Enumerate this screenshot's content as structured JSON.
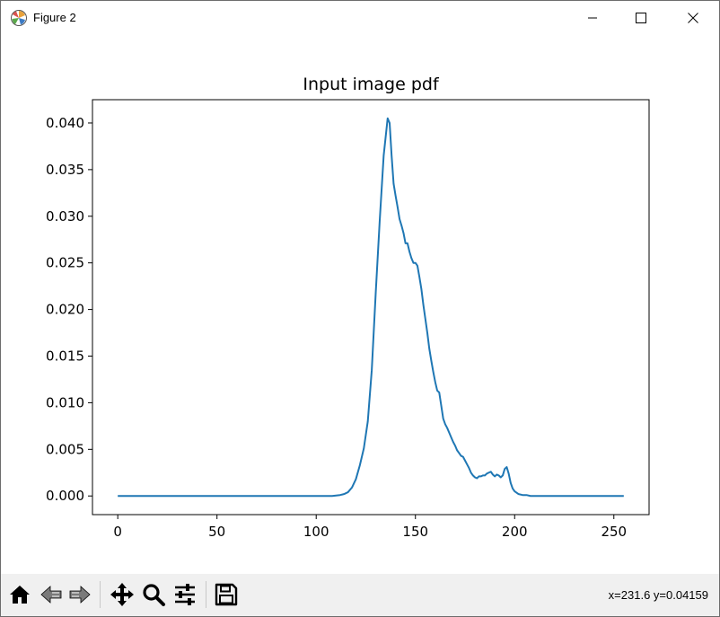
{
  "window": {
    "title": "Figure 2"
  },
  "toolbar": {
    "coords": "x=231.6 y=0.04159"
  },
  "chart_data": {
    "type": "line",
    "title": "Input image pdf",
    "xlabel": "",
    "ylabel": "",
    "xlim": [
      -12.75,
      267.75
    ],
    "ylim": [
      -0.002,
      0.0425
    ],
    "xticks": [
      0,
      50,
      100,
      150,
      200,
      250
    ],
    "xtick_labels": [
      "0",
      "50",
      "100",
      "150",
      "200",
      "250"
    ],
    "yticks": [
      0,
      0.005,
      0.01,
      0.015,
      0.02,
      0.025,
      0.03,
      0.035,
      0.04
    ],
    "ytick_labels": [
      "0.000",
      "0.005",
      "0.010",
      "0.015",
      "0.020",
      "0.025",
      "0.030",
      "0.035",
      "0.040"
    ],
    "grid": false,
    "line_color": "#1f77b4",
    "series": [
      {
        "x": [
          0,
          100,
          108,
          112,
          114,
          116,
          118,
          120,
          122,
          124,
          126,
          128,
          130,
          132,
          134,
          136,
          137,
          138,
          139,
          140,
          141,
          142,
          143,
          144,
          145,
          146,
          147,
          148,
          149,
          150,
          151,
          152,
          153,
          154,
          155,
          156,
          157,
          158,
          159,
          160,
          161,
          162,
          163,
          164,
          165,
          166,
          167,
          168,
          169,
          170,
          171,
          172,
          173,
          174,
          175,
          176,
          177,
          178,
          179,
          180,
          181,
          182,
          183,
          184,
          185,
          186,
          187,
          188,
          189,
          190,
          191,
          192,
          193,
          194,
          195,
          196,
          197,
          198,
          199,
          200,
          202,
          204,
          206,
          208,
          210,
          215,
          220,
          230,
          240,
          255
        ],
        "y": [
          0,
          0,
          0,
          0.0001,
          0.0002,
          0.0004,
          0.0009,
          0.0018,
          0.0033,
          0.0051,
          0.008,
          0.0135,
          0.0218,
          0.0295,
          0.0365,
          0.0405,
          0.04,
          0.0365,
          0.0335,
          0.0322,
          0.031,
          0.0297,
          0.029,
          0.0282,
          0.0271,
          0.0271,
          0.0262,
          0.0255,
          0.025,
          0.025,
          0.0247,
          0.0235,
          0.0222,
          0.0205,
          0.019,
          0.0175,
          0.0158,
          0.0145,
          0.0133,
          0.0122,
          0.0113,
          0.0111,
          0.0097,
          0.0083,
          0.0077,
          0.0073,
          0.0068,
          0.0063,
          0.0058,
          0.0054,
          0.0049,
          0.0046,
          0.0043,
          0.0042,
          0.0038,
          0.0034,
          0.003,
          0.0025,
          0.0022,
          0.002,
          0.0019,
          0.0021,
          0.0021,
          0.0022,
          0.0022,
          0.0024,
          0.0025,
          0.0026,
          0.0023,
          0.0021,
          0.0023,
          0.0022,
          0.002,
          0.0022,
          0.0029,
          0.0031,
          0.0024,
          0.0014,
          0.0008,
          0.0005,
          0.0002,
          0.0001,
          0.0001,
          0,
          0,
          0,
          0,
          0,
          0,
          0
        ]
      }
    ]
  }
}
